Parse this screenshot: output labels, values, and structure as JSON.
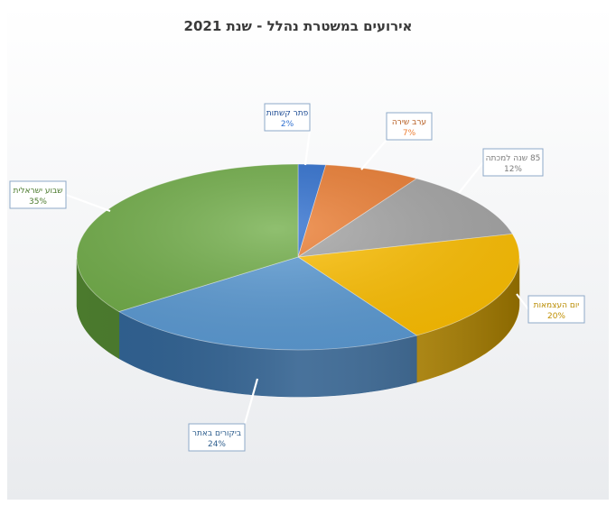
{
  "chart_data": {
    "type": "pie",
    "title": "אירועים במשטרת נהלל - שנת 2021",
    "slices": [
      {
        "label": "פתר קשתות",
        "percent_label": "2%",
        "value": 2,
        "color": "#2e6fd0",
        "side": "#1d4c94"
      },
      {
        "label": "ערב שירה",
        "percent_label": "7%",
        "value": 7,
        "color": "#ed7d31",
        "side": "#b55a1d"
      },
      {
        "label": "85 שנה למכתה",
        "percent_label": "12%",
        "value": 12,
        "color": "#a5a5a5",
        "side": "#7a7a7a"
      },
      {
        "label": "יום העצמאות",
        "percent_label": "20%",
        "value": 20,
        "color": "#ffc000",
        "side": "#b98b00"
      },
      {
        "label": "ביקורים באתר",
        "percent_label": "24%",
        "value": 24,
        "color": "#5b9bd5",
        "side": "#2f5f8e"
      },
      {
        "label": "שבוע ישראלית",
        "percent_label": "35%",
        "value": 35,
        "color": "#70ad47",
        "side": "#4b7a2d"
      }
    ]
  }
}
